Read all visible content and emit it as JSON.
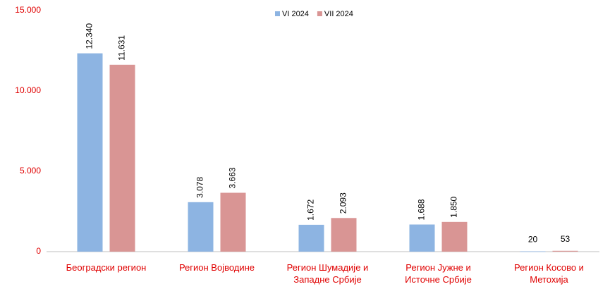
{
  "chart_data": {
    "type": "bar",
    "categories": [
      "Београдски регион",
      "Регион Војводине",
      "Регион Шумадије и\nЗападне Србије",
      "Регион Јужне и\nИсточне Србије",
      "Регион Косово и\nМетохија"
    ],
    "series": [
      {
        "name": "VI 2024",
        "color": "#8db4e2",
        "values": [
          12340,
          3078,
          1672,
          1688,
          20
        ],
        "value_labels": [
          "12.340",
          "3.078",
          "1.672",
          "1.688",
          "20"
        ]
      },
      {
        "name": "VII 2024",
        "color": "#d99594",
        "values": [
          11631,
          3663,
          2093,
          1850,
          53
        ],
        "value_labels": [
          "11.631",
          "3.663",
          "2.093",
          "1.850",
          "53"
        ]
      }
    ],
    "ylim": [
      0,
      15000
    ],
    "yticks": [
      0,
      {
        "value": 5000,
        "label": "5.000"
      },
      {
        "value": 10000,
        "label": "10.000"
      },
      {
        "value": 15000,
        "label": "15.000"
      }
    ],
    "legend": "top",
    "grid": false
  }
}
